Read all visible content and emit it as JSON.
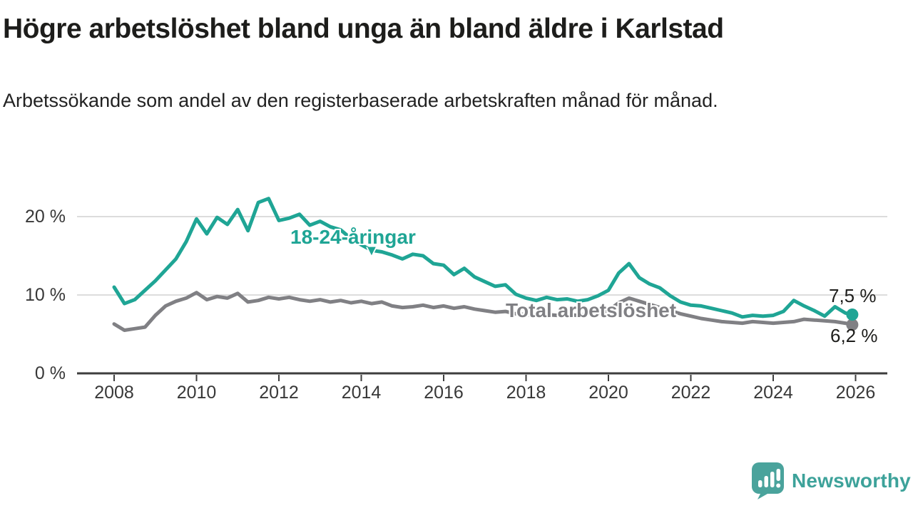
{
  "header": {
    "title": "Högre arbetslöshet bland unga än bland äldre i Karlstad",
    "subtitle": "Arbetssökande som andel av den registerbaserade arbetskraften månad för månad."
  },
  "icons": {
    "down_arrow": "▼",
    "logo_icon": "speech-bubble-bar-chart"
  },
  "branding": {
    "logo_text": "Newsworthy",
    "brand_color": "#3da29a"
  },
  "colors": {
    "young_line": "#1fa595",
    "total_line": "#808084",
    "grid": "#dcdcdc",
    "axis": "#3d3d3d",
    "label_text": "#1d1d1b",
    "axis_text": "#383838"
  },
  "chart_data": {
    "type": "line",
    "title": "Högre arbetslöshet bland unga än bland äldre i Karlstad",
    "subtitle": "Arbetssökande som andel av den registerbaserade arbetskraften månad för månad.",
    "xlabel": "",
    "ylabel": "",
    "grid": "horizontal-only",
    "legend_position": "inline-annotations",
    "ylim": [
      0,
      24
    ],
    "xlim": [
      2008,
      2026
    ],
    "x_ticks": [
      "2008",
      "2010",
      "2012",
      "2014",
      "2016",
      "2018",
      "2020",
      "2022",
      "2024",
      "2026"
    ],
    "y_ticks": [
      {
        "value": 0,
        "label": "0 %"
      },
      {
        "value": 10,
        "label": "10 %"
      },
      {
        "value": 20,
        "label": "20 %"
      }
    ],
    "x": [
      2008.0,
      2008.25,
      2008.5,
      2008.75,
      2009.0,
      2009.25,
      2009.5,
      2009.75,
      2010.0,
      2010.25,
      2010.5,
      2010.75,
      2011.0,
      2011.25,
      2011.5,
      2011.75,
      2012.0,
      2012.25,
      2012.5,
      2012.75,
      2013.0,
      2013.25,
      2013.5,
      2013.75,
      2014.0,
      2014.25,
      2014.5,
      2014.75,
      2015.0,
      2015.25,
      2015.5,
      2015.75,
      2016.0,
      2016.25,
      2016.5,
      2016.75,
      2017.0,
      2017.25,
      2017.5,
      2017.75,
      2018.0,
      2018.25,
      2018.5,
      2018.75,
      2019.0,
      2019.25,
      2019.5,
      2019.75,
      2020.0,
      2020.25,
      2020.5,
      2020.75,
      2021.0,
      2021.25,
      2021.5,
      2021.75,
      2022.0,
      2022.25,
      2022.5,
      2022.75,
      2023.0,
      2023.25,
      2023.5,
      2023.75,
      2024.0,
      2024.25,
      2024.5,
      2024.75,
      2025.0,
      2025.25,
      2025.5,
      2025.75,
      2025.92
    ],
    "series": [
      {
        "name": "18-24-åringar",
        "color": "#1fa595",
        "end_label": "7,5 %",
        "end_value": 7.5,
        "values": [
          11.0,
          8.9,
          9.4,
          10.6,
          11.8,
          13.2,
          14.6,
          16.8,
          19.7,
          17.8,
          19.9,
          19.0,
          20.9,
          18.2,
          21.8,
          22.3,
          19.5,
          19.8,
          20.3,
          18.9,
          19.4,
          18.7,
          18.3,
          17.2,
          16.4,
          15.7,
          15.5,
          15.1,
          14.6,
          15.2,
          15.0,
          14.0,
          13.8,
          12.6,
          13.4,
          12.3,
          11.7,
          11.1,
          11.3,
          10.1,
          9.6,
          9.3,
          9.7,
          9.4,
          9.5,
          9.2,
          9.4,
          9.9,
          10.6,
          12.8,
          14.0,
          12.2,
          11.4,
          10.9,
          9.9,
          9.1,
          8.7,
          8.6,
          8.3,
          8.0,
          7.7,
          7.2,
          7.4,
          7.3,
          7.4,
          7.9,
          9.3,
          8.6,
          8.0,
          7.3,
          8.5,
          7.7,
          7.5
        ]
      },
      {
        "name": "Total arbetslöshet",
        "color": "#808084",
        "end_label": "6,2 %",
        "end_value": 6.2,
        "values": [
          6.3,
          5.5,
          5.7,
          5.9,
          7.4,
          8.6,
          9.2,
          9.6,
          10.3,
          9.4,
          9.8,
          9.6,
          10.2,
          9.1,
          9.3,
          9.7,
          9.5,
          9.7,
          9.4,
          9.2,
          9.4,
          9.1,
          9.3,
          9.0,
          9.2,
          8.9,
          9.1,
          8.6,
          8.4,
          8.5,
          8.7,
          8.4,
          8.6,
          8.3,
          8.5,
          8.2,
          8.0,
          7.8,
          7.9,
          7.6,
          7.5,
          7.3,
          7.5,
          7.4,
          7.5,
          7.4,
          7.6,
          7.7,
          8.0,
          9.0,
          9.6,
          9.2,
          8.8,
          8.4,
          8.0,
          7.6,
          7.3,
          7.0,
          6.8,
          6.6,
          6.5,
          6.4,
          6.6,
          6.5,
          6.4,
          6.5,
          6.6,
          6.9,
          6.8,
          6.7,
          6.6,
          6.4,
          6.2
        ]
      }
    ]
  }
}
